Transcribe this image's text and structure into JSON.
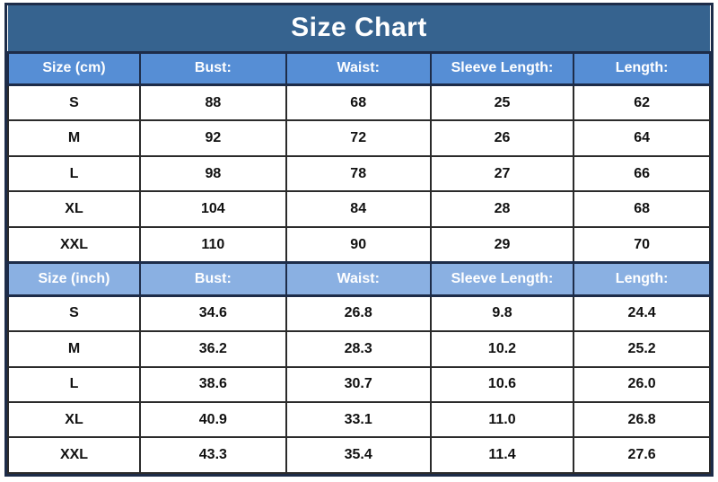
{
  "chart_data": {
    "type": "table",
    "title": "Size Chart",
    "sections": [
      {
        "unit": "cm",
        "columns": [
          "Size (cm)",
          "Bust:",
          "Waist:",
          "Sleeve Length:",
          "Length:"
        ],
        "rows": [
          [
            "S",
            "88",
            "68",
            "25",
            "62"
          ],
          [
            "M",
            "92",
            "72",
            "26",
            "64"
          ],
          [
            "L",
            "98",
            "78",
            "27",
            "66"
          ],
          [
            "XL",
            "104",
            "84",
            "28",
            "68"
          ],
          [
            "XXL",
            "110",
            "90",
            "29",
            "70"
          ]
        ]
      },
      {
        "unit": "inch",
        "columns": [
          "Size (inch)",
          "Bust:",
          "Waist:",
          "Sleeve Length:",
          "Length:"
        ],
        "rows": [
          [
            "S",
            "34.6",
            "26.8",
            "9.8",
            "24.4"
          ],
          [
            "M",
            "36.2",
            "28.3",
            "10.2",
            "25.2"
          ],
          [
            "L",
            "38.6",
            "30.7",
            "10.6",
            "26.0"
          ],
          [
            "XL",
            "40.9",
            "33.1",
            "11.0",
            "26.8"
          ],
          [
            "XXL",
            "43.3",
            "35.4",
            "11.4",
            "27.6"
          ]
        ]
      }
    ]
  },
  "colors": {
    "title_banner": "#36638f",
    "cm_header": "#568ed5",
    "inch_header": "#8ab0e2",
    "outer_border": "#1d2c49",
    "cell_border": "#2b2b2b",
    "header_text": "#ffffff",
    "data_text": "#111111"
  }
}
